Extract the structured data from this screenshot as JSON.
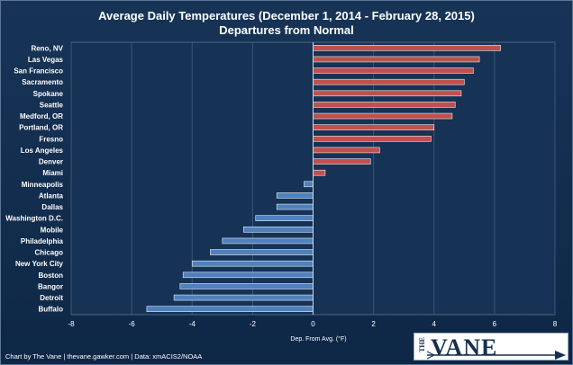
{
  "title_line1": "Average Daily Temperatures (December 1, 2014 - February 28, 2015)",
  "title_line2": "Departures from Normal",
  "credit": "Chart by The Vane  |  thevane.gawker.com  |  Data: xmACIS2/NOAA",
  "logo": {
    "the": "THE",
    "vane": "VANE"
  },
  "colors": {
    "positive": "#c0504d",
    "negative": "#4f81bd",
    "background": "#163254",
    "grid": "#3a5677"
  },
  "chart_data": {
    "type": "bar",
    "orientation": "horizontal",
    "title": "Average Daily Temperatures (December 1, 2014 - February 28, 2015) Departures from Normal",
    "xlabel": "Dep. From Avg. (°F)",
    "ylabel": "",
    "xlim": [
      -8,
      8
    ],
    "xticks": [
      -8,
      -6,
      -4,
      -2,
      0,
      2,
      4,
      6,
      8
    ],
    "grid": true,
    "categories": [
      "Reno, NV",
      "Las Vegas",
      "San Francisco",
      "Sacramento",
      "Spokane",
      "Seattle",
      "Medford, OR",
      "Portland, OR",
      "Fresno",
      "Los Angeles",
      "Denver",
      "Miami",
      "Minneapolis",
      "Atlanta",
      "Dallas",
      "Washington D.C.",
      "Mobile",
      "Philadelphia",
      "Chicago",
      "New York City",
      "Boston",
      "Bangor",
      "Detroit",
      "Buffalo"
    ],
    "values": [
      6.2,
      5.5,
      5.3,
      5.0,
      4.9,
      4.7,
      4.6,
      4.0,
      3.9,
      2.2,
      1.9,
      0.4,
      -0.3,
      -1.2,
      -1.2,
      -1.9,
      -2.3,
      -3.0,
      -3.4,
      -4.0,
      -4.3,
      -4.4,
      -4.6,
      -5.5
    ]
  }
}
